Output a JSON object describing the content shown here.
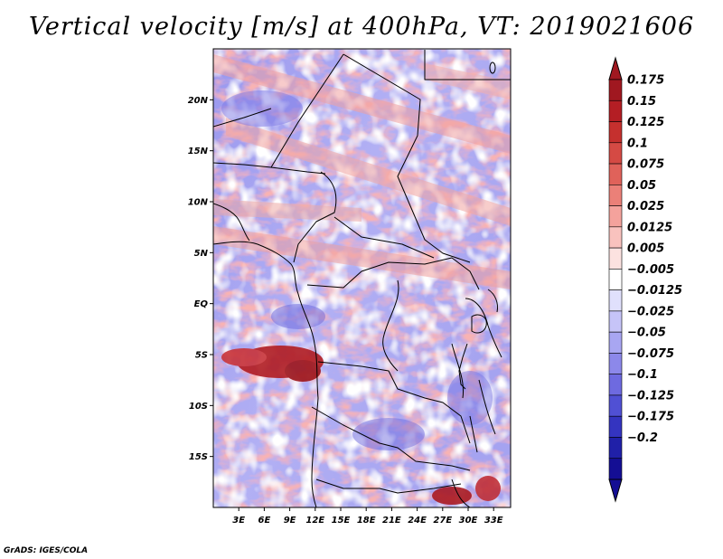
{
  "title": "Vertical velocity [m/s] at 400hPa, VT: 2019021606",
  "footer": "GrADS: IGES/COLA",
  "map": {
    "lat_labels": [
      "20N",
      "15N",
      "10N",
      "5N",
      "EQ",
      "5S",
      "10S",
      "15S"
    ],
    "lat_values": [
      20,
      15,
      10,
      5,
      0,
      -5,
      -10,
      -15
    ],
    "lon_labels": [
      "3E",
      "6E",
      "9E",
      "12E",
      "15E",
      "18E",
      "21E",
      "24E",
      "27E",
      "30E",
      "33E"
    ],
    "lon_values": [
      3,
      6,
      9,
      12,
      15,
      18,
      21,
      24,
      27,
      30,
      33
    ],
    "lon_range": [
      0,
      35
    ],
    "lat_range": [
      -20,
      25
    ]
  },
  "colorbar": {
    "labels": [
      "0.175",
      "0.15",
      "0.125",
      "0.1",
      "0.075",
      "0.05",
      "0.025",
      "0.0125",
      "0.005",
      "−0.005",
      "−0.0125",
      "−0.025",
      "−0.05",
      "−0.075",
      "−0.1",
      "−0.125",
      "−0.175",
      "−0.2"
    ],
    "colors": [
      "#a01820",
      "#b41e24",
      "#c5302e",
      "#d54a44",
      "#e0625a",
      "#eb8078",
      "#f4a29c",
      "#f9c2be",
      "#fce2e0",
      "#ffffff",
      "#e0e0fc",
      "#c6c4f8",
      "#a8a6f2",
      "#8c88ea",
      "#6e6ae0",
      "#5050d4",
      "#3434c0",
      "#2020a8",
      "#140e94"
    ],
    "top_color": "#a01820",
    "bottom_color": "#140e94"
  }
}
